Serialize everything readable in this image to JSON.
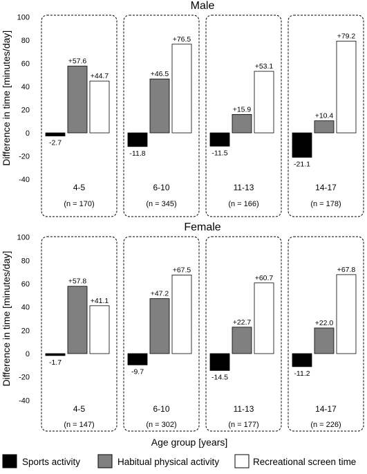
{
  "chart_data": [
    {
      "type": "bar",
      "title": "Male",
      "ylabel": "Difference in time [minutes/day]",
      "ylim": [
        -40,
        100
      ],
      "yticks": [
        "-40",
        "-20",
        "0",
        "20",
        "40",
        "60",
        "80",
        "100"
      ],
      "categories": [
        "4-5",
        "6-10",
        "11-13",
        "14-17"
      ],
      "n_labels": [
        "(n = 170)",
        "(n = 345)",
        "(n = 166)",
        "(n = 178)"
      ],
      "series": [
        {
          "name": "Sports activity",
          "color": "#000000",
          "values": [
            -2.7,
            -11.8,
            -11.5,
            -21.1
          ],
          "labels": [
            "-2.7",
            "-11.8",
            "-11.5",
            "-21.1"
          ]
        },
        {
          "name": "Habitual physical activity",
          "color": "#808080",
          "values": [
            57.6,
            46.5,
            15.9,
            10.4
          ],
          "labels": [
            "+57.6",
            "+46.5",
            "+15.9",
            "+10.4"
          ]
        },
        {
          "name": "Recreational screen time",
          "color": "#ffffff",
          "values": [
            44.7,
            76.5,
            53.1,
            79.2
          ],
          "labels": [
            "+44.7",
            "+76.5",
            "+53.1",
            "+79.2"
          ]
        }
      ]
    },
    {
      "type": "bar",
      "title": "Female",
      "ylabel": "Difference in time [minutes/day]",
      "ylim": [
        -40,
        100
      ],
      "yticks": [
        "-40",
        "-20",
        "0",
        "20",
        "40",
        "60",
        "80",
        "100"
      ],
      "categories": [
        "4-5",
        "6-10",
        "11-13",
        "14-17"
      ],
      "n_labels": [
        "(n = 147)",
        "(n = 302)",
        "(n = 177)",
        "(n = 226)"
      ],
      "series": [
        {
          "name": "Sports activity",
          "color": "#000000",
          "values": [
            -1.7,
            -9.7,
            -14.5,
            -11.2
          ],
          "labels": [
            "-1.7",
            "-9.7",
            "-14.5",
            "-11.2"
          ]
        },
        {
          "name": "Habitual physical activity",
          "color": "#808080",
          "values": [
            57.8,
            47.2,
            22.7,
            22.0
          ],
          "labels": [
            "+57.8",
            "+47.2",
            "+22.7",
            "+22.0"
          ]
        },
        {
          "name": "Recreational screen time",
          "color": "#ffffff",
          "values": [
            41.1,
            67.5,
            60.7,
            67.8
          ],
          "labels": [
            "+41.1",
            "+67.5",
            "+60.7",
            "+67.8"
          ]
        }
      ]
    }
  ],
  "xlabel": "Age group [years]",
  "legend": {
    "placement": "bottom",
    "items": [
      {
        "label": "Sports activity",
        "color": "#000000"
      },
      {
        "label": "Habitual physical activity",
        "color": "#808080"
      },
      {
        "label": "Recreational screen time",
        "color": "#ffffff"
      }
    ]
  },
  "grid": false
}
